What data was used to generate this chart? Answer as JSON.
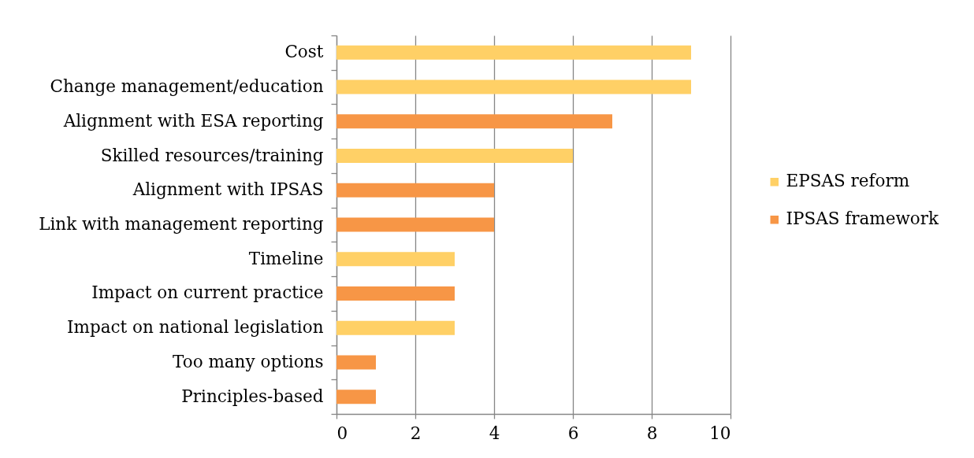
{
  "chart_data": {
    "type": "bar",
    "orientation": "horizontal",
    "categories": [
      "Cost",
      "Change management/education",
      "Alignment with ESA reporting",
      "Skilled resources/training",
      "Alignment with IPSAS",
      "Link with management reporting",
      "Timeline",
      "Impact on current practice",
      "Impact on national legislation",
      "Too many options",
      "Principles-based"
    ],
    "series": [
      {
        "name": "EPSAS reform",
        "color": "#ffd066",
        "values": [
          9,
          9,
          null,
          6,
          null,
          null,
          3,
          null,
          3,
          null,
          null
        ]
      },
      {
        "name": "IPSAS framework",
        "color": "#f79646",
        "values": [
          null,
          null,
          7,
          null,
          4,
          4,
          null,
          3,
          null,
          1,
          1
        ]
      }
    ],
    "xlim": [
      0,
      10
    ],
    "xticks": [
      0,
      2,
      4,
      6,
      8,
      10
    ],
    "grid": "x",
    "legend": "right"
  }
}
